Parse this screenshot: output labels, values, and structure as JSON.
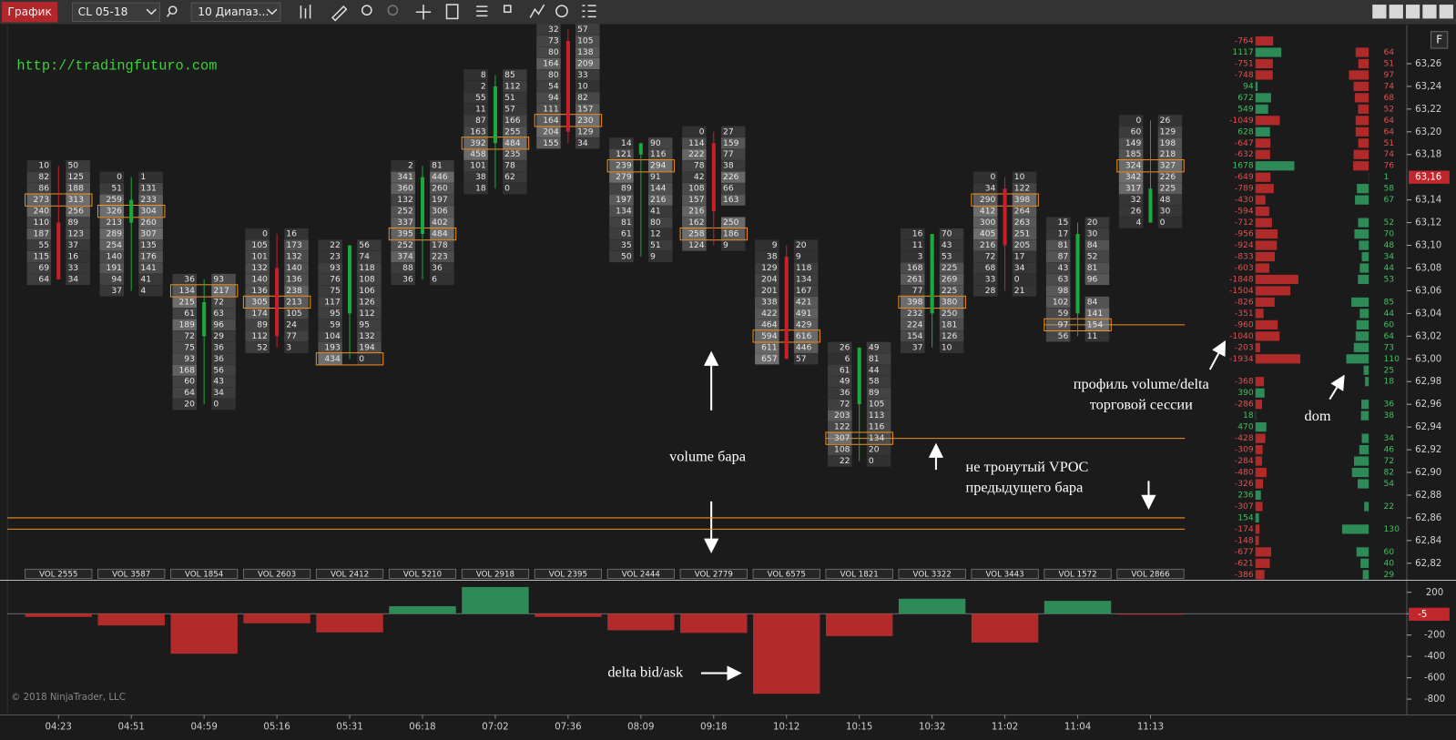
{
  "toolbar": {
    "chart_button": "График",
    "instrument": "CL 05-18",
    "bar_type": "10 Диапаз...",
    "panel_button": "F"
  },
  "watermark": "http://tradingfuturo.com",
  "copyright": "© 2018 NinjaTrader, LLC",
  "annotations": {
    "volume_bar": "volume бара",
    "vpoc": [
      "не тронутый VPOC",
      "предыдущего бара"
    ],
    "profile": [
      "профиль volume/delta",
      "торговой сессии"
    ],
    "dom": "dom",
    "delta": "delta bid/ask"
  },
  "price_axis": {
    "ylim": [
      62.805,
      63.294
    ],
    "yticks": [
      {
        "value": 63.26,
        "label": "63,26"
      },
      {
        "value": 63.24,
        "label": "63,24"
      },
      {
        "value": 63.22,
        "label": "63,22"
      },
      {
        "value": 63.2,
        "label": "63,20"
      },
      {
        "value": 63.18,
        "label": "63,18"
      },
      {
        "value": 63.14,
        "label": "63,14"
      },
      {
        "value": 63.12,
        "label": "63,12"
      },
      {
        "value": 63.1,
        "label": "63,10"
      },
      {
        "value": 63.08,
        "label": "63,08"
      },
      {
        "value": 63.06,
        "label": "63,06"
      },
      {
        "value": 63.04,
        "label": "63,04"
      },
      {
        "value": 63.02,
        "label": "63,02"
      },
      {
        "value": 63.0,
        "label": "63,00"
      },
      {
        "value": 62.98,
        "label": "62,98"
      },
      {
        "value": 62.96,
        "label": "62,96"
      },
      {
        "value": 62.94,
        "label": "62,94"
      },
      {
        "value": 62.92,
        "label": "62,92"
      },
      {
        "value": 62.9,
        "label": "62,90"
      },
      {
        "value": 62.88,
        "label": "62,88"
      },
      {
        "value": 62.86,
        "label": "62,86"
      },
      {
        "value": 62.84,
        "label": "62,84"
      },
      {
        "value": 62.82,
        "label": "62,82"
      }
    ],
    "current": {
      "value": 63.16,
      "label": "63,16"
    }
  },
  "footprint": {
    "bars": [
      {
        "high": 63.17,
        "low": 63.07,
        "open": 63.12,
        "close": 63.07,
        "poc": 63.14,
        "volume_label": "VOL 2555",
        "bid": [
          10,
          82,
          86,
          273,
          240,
          110,
          187,
          55,
          115,
          69,
          64
        ],
        "ask": [
          50,
          125,
          188,
          313,
          256,
          89,
          123,
          37,
          16,
          33,
          34
        ]
      },
      {
        "high": 63.16,
        "low": 63.06,
        "open": 63.12,
        "close": 63.14,
        "poc": 63.13,
        "volume_label": "VOL 3587",
        "bid": [
          0,
          51,
          259,
          326,
          213,
          289,
          254,
          140,
          191,
          94,
          37
        ],
        "ask": [
          1,
          131,
          233,
          304,
          260,
          307,
          135,
          176,
          141,
          41,
          4
        ]
      },
      {
        "high": 63.07,
        "low": 62.96,
        "open": 63.02,
        "close": 63.05,
        "poc": 63.06,
        "volume_label": "VOL 1854",
        "bid": [
          36,
          134,
          215,
          61,
          189,
          72,
          75,
          93,
          168,
          60,
          64,
          20
        ],
        "ask": [
          93,
          217,
          72,
          63,
          96,
          29,
          36,
          36,
          56,
          43,
          34,
          0
        ]
      },
      {
        "high": 63.11,
        "low": 63.01,
        "open": 63.08,
        "close": 63.02,
        "poc": 63.05,
        "volume_label": "VOL 2603",
        "bid": [
          0,
          105,
          101,
          132,
          140,
          136,
          305,
          174,
          89,
          112,
          52
        ],
        "ask": [
          16,
          173,
          132,
          140,
          136,
          238,
          213,
          105,
          24,
          77,
          3
        ]
      },
      {
        "high": 63.1,
        "low": 63.0,
        "open": 63.04,
        "close": 63.1,
        "poc": 63.0,
        "volume_label": "VOL 2412",
        "bid": [
          22,
          23,
          93,
          76,
          75,
          117,
          95,
          59,
          104,
          193,
          434
        ],
        "ask": [
          56,
          74,
          118,
          108,
          106,
          126,
          112,
          95,
          132,
          194,
          0
        ]
      },
      {
        "high": 63.17,
        "low": 63.07,
        "open": 63.11,
        "close": 63.16,
        "poc": 63.11,
        "volume_label": "VOL 5210",
        "bid": [
          2,
          341,
          360,
          132,
          252,
          337,
          395,
          252,
          374,
          88,
          36
        ],
        "ask": [
          81,
          446,
          260,
          197,
          306,
          402,
          484,
          178,
          223,
          36,
          6
        ]
      },
      {
        "high": 63.25,
        "low": 63.15,
        "open": 63.19,
        "close": 63.24,
        "poc": 63.19,
        "volume_label": "VOL 2918",
        "bid": [
          8,
          2,
          55,
          11,
          87,
          163,
          392,
          458,
          101,
          38,
          18
        ],
        "ask": [
          85,
          112,
          51,
          57,
          166,
          255,
          484,
          235,
          78,
          62,
          0
        ]
      },
      {
        "high": 63.29,
        "low": 63.19,
        "open": 63.28,
        "close": 63.2,
        "poc": 63.21,
        "volume_label": "VOL 2395",
        "bid": [
          32,
          73,
          80,
          164,
          80,
          54,
          94,
          111,
          164,
          204,
          155
        ],
        "ask": [
          57,
          105,
          138,
          209,
          33,
          10,
          82,
          157,
          230,
          129,
          34
        ]
      },
      {
        "high": 63.19,
        "low": 63.09,
        "open": 63.18,
        "close": 63.19,
        "poc": 63.17,
        "volume_label": "VOL 2444",
        "bid": [
          14,
          121,
          239,
          279,
          89,
          197,
          134,
          81,
          61,
          35,
          50
        ],
        "ask": [
          90,
          116,
          294,
          91,
          144,
          216,
          41,
          80,
          12,
          51,
          9
        ]
      },
      {
        "high": 63.2,
        "low": 63.1,
        "open": 63.19,
        "close": 63.13,
        "poc": 63.11,
        "volume_label": "VOL 2779",
        "bid": [
          0,
          114,
          222,
          78,
          42,
          108,
          157,
          216,
          162,
          258,
          124
        ],
        "ask": [
          27,
          159,
          77,
          38,
          226,
          66,
          163,
          null,
          250,
          186,
          9
        ]
      },
      {
        "high": 63.1,
        "low": 63.0,
        "open": 63.09,
        "close": 63.0,
        "poc": 63.02,
        "volume_label": "VOL 6575",
        "bid": [
          9,
          38,
          129,
          204,
          201,
          338,
          422,
          464,
          594,
          611,
          657
        ],
        "ask": [
          20,
          9,
          118,
          134,
          167,
          421,
          491,
          429,
          616,
          446,
          57
        ]
      },
      {
        "high": 63.01,
        "low": 62.91,
        "open": 62.96,
        "close": 63.01,
        "poc": 62.93,
        "volume_label": "VOL 1821",
        "bid": [
          26,
          6,
          61,
          49,
          36,
          72,
          203,
          122,
          307,
          108,
          22
        ],
        "ask": [
          49,
          81,
          44,
          58,
          89,
          105,
          113,
          116,
          134,
          20,
          0
        ]
      },
      {
        "high": 63.11,
        "low": 63.01,
        "open": 63.04,
        "close": 63.11,
        "poc": 63.05,
        "volume_label": "VOL 3322",
        "bid": [
          16,
          11,
          3,
          168,
          261,
          77,
          398,
          232,
          224,
          154,
          37
        ],
        "ask": [
          70,
          43,
          53,
          225,
          269,
          225,
          380,
          250,
          181,
          126,
          10
        ]
      },
      {
        "high": 63.16,
        "low": 63.06,
        "open": 63.15,
        "close": 63.1,
        "poc": 63.14,
        "volume_label": "VOL 3443",
        "bid": [
          0,
          34,
          290,
          412,
          300,
          405,
          216,
          72,
          68,
          33,
          28
        ],
        "ask": [
          10,
          122,
          398,
          264,
          263,
          251,
          205,
          17,
          34,
          0,
          21
        ]
      },
      {
        "high": 63.12,
        "low": 63.02,
        "open": 63.04,
        "close": 63.11,
        "poc": 63.03,
        "volume_label": "VOL 1572",
        "bid": [
          15,
          17,
          81,
          87,
          43,
          63,
          98,
          102,
          59,
          97,
          56
        ],
        "ask": [
          20,
          30,
          84,
          52,
          81,
          96,
          null,
          84,
          141,
          154,
          11
        ]
      },
      {
        "high": 63.21,
        "low": 63.12,
        "open": 63.12,
        "close": 63.15,
        "poc": 63.17,
        "volume_label": "VOL 2866",
        "bid": [
          0,
          60,
          149,
          185,
          324,
          342,
          317,
          32,
          26,
          4
        ],
        "ask": [
          26,
          129,
          198,
          218,
          327,
          226,
          225,
          48,
          30,
          0
        ]
      }
    ],
    "naked_vpoc": [
      62.93,
      63.03
    ],
    "levels": [
      62.86,
      62.85
    ],
    "colors": {
      "up": "#1fa83a",
      "down": "#c8202a",
      "poc": "#f0901e"
    }
  },
  "profile": {
    "high": 63.28,
    "low": 62.81,
    "delta": [
      -764,
      1117,
      -751,
      -748,
      94,
      672,
      549,
      -1049,
      628,
      -647,
      -632,
      1678,
      -649,
      -789,
      -430,
      -594,
      -712,
      -956,
      -924,
      -833,
      -603,
      -1848,
      -1504,
      -826,
      -351,
      -960,
      -1040,
      -203,
      -1934,
      null,
      -368,
      390,
      -286,
      18,
      470,
      -428,
      -309,
      -284,
      -480,
      -326,
      236,
      -307,
      154,
      -174,
      -148,
      -677,
      -621,
      -386
    ]
  },
  "dom": {
    "asks": {
      "high": 63.27,
      "low": 63.17,
      "values": [
        64,
        51,
        97,
        74,
        68,
        52,
        64,
        64,
        51,
        74,
        76
      ]
    },
    "bids": {
      "high": 63.16,
      "low": 62.81,
      "values": [
        1,
        58,
        67,
        null,
        52,
        70,
        48,
        34,
        44,
        53,
        null,
        85,
        44,
        60,
        64,
        73,
        110,
        25,
        18,
        null,
        36,
        38,
        null,
        34,
        46,
        72,
        82,
        54,
        null,
        22,
        null,
        130,
        null,
        60,
        40,
        29
      ]
    }
  },
  "chart_data": {
    "type": "bar",
    "categories": [
      "04:23",
      "04:51",
      "04:59",
      "05:16",
      "05:31",
      "06:18",
      "07:02",
      "07:36",
      "08:09",
      "09:18",
      "10:12",
      "10:15",
      "10:32",
      "11:02",
      "11:04",
      "11:13"
    ],
    "values": [
      -30,
      -110,
      -375,
      -90,
      -175,
      70,
      250,
      -30,
      -155,
      -180,
      -750,
      -210,
      140,
      -270,
      120,
      -5
    ],
    "ylim": [
      -948,
      304
    ],
    "yticks": [
      200,
      0,
      -200,
      -400,
      -600,
      -800
    ],
    "colors": {
      "positive": "#2e8b57",
      "negative": "#b22a2a"
    }
  }
}
